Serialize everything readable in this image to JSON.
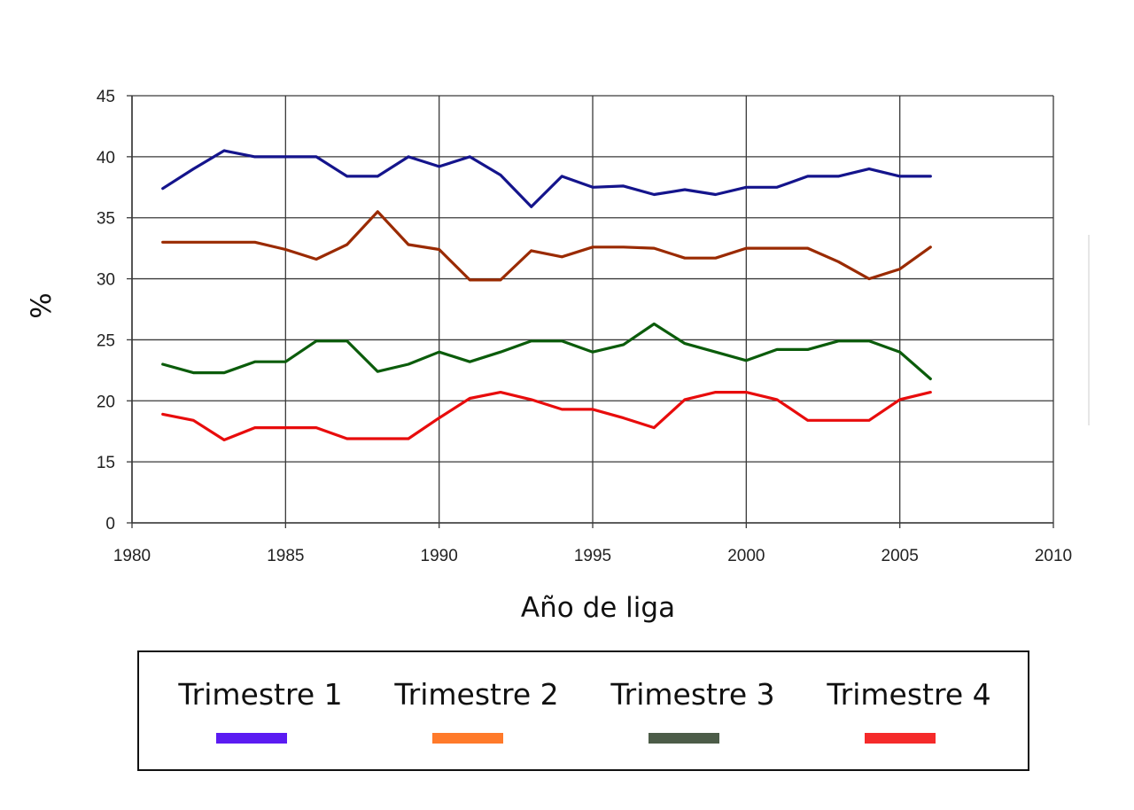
{
  "chart_data": {
    "type": "line",
    "title": "",
    "xlabel": "Año de liga",
    "ylabel": "%",
    "xlim": [
      1980,
      2010
    ],
    "x_ticks": [
      1980,
      1985,
      1990,
      1995,
      2000,
      2005,
      2010
    ],
    "y_tick_labels": [
      "0",
      "15",
      "20",
      "25",
      "30",
      "35",
      "40",
      "45"
    ],
    "y_tick_values": [
      0,
      15,
      20,
      25,
      30,
      35,
      40,
      45
    ],
    "grid": true,
    "x": [
      1981,
      1982,
      1983,
      1984,
      1985,
      1986,
      1987,
      1988,
      1989,
      1990,
      1991,
      1992,
      1993,
      1994,
      1995,
      1996,
      1997,
      1998,
      1999,
      2000,
      2001,
      2002,
      2003,
      2004,
      2005,
      2006
    ],
    "series": [
      {
        "name": "Trimestre 1",
        "color": "#14148c",
        "legend_color": "#5b1bf2",
        "values": [
          37.4,
          39.0,
          40.5,
          40.0,
          40.0,
          40.0,
          38.4,
          38.4,
          40.0,
          39.2,
          40.0,
          38.5,
          35.9,
          38.4,
          37.5,
          37.6,
          36.9,
          37.3,
          36.9,
          37.5,
          37.5,
          38.4,
          38.4,
          39.0,
          38.4,
          38.4
        ]
      },
      {
        "name": "Trimestre 2",
        "color": "#9a2a00",
        "legend_color": "#ff7a2a",
        "values": [
          33.0,
          33.0,
          33.0,
          33.0,
          32.4,
          31.6,
          32.8,
          35.5,
          32.8,
          32.4,
          29.9,
          29.9,
          32.3,
          31.8,
          32.6,
          32.6,
          32.5,
          31.7,
          31.7,
          32.5,
          32.5,
          32.5,
          31.4,
          30.0,
          30.8,
          32.6
        ]
      },
      {
        "name": "Trimestre 3",
        "color": "#0b5c0b",
        "legend_color": "#4c5c48",
        "values": [
          23.0,
          22.3,
          22.3,
          23.2,
          23.2,
          24.9,
          24.9,
          22.4,
          23.0,
          24.0,
          23.2,
          24.0,
          24.9,
          24.9,
          24.0,
          24.6,
          26.3,
          24.7,
          24.0,
          23.3,
          24.2,
          24.2,
          24.9,
          24.9,
          24.0,
          21.8
        ]
      },
      {
        "name": "Trimestre 4",
        "color": "#e80c0c",
        "legend_color": "#f52a2a",
        "values": [
          18.9,
          18.4,
          16.8,
          17.8,
          17.8,
          17.8,
          16.9,
          16.9,
          16.9,
          18.6,
          20.2,
          20.7,
          20.1,
          19.3,
          19.3,
          18.6,
          17.8,
          20.1,
          20.7,
          20.7,
          20.1,
          18.4,
          18.4,
          18.4,
          20.1,
          20.7
        ]
      }
    ]
  }
}
